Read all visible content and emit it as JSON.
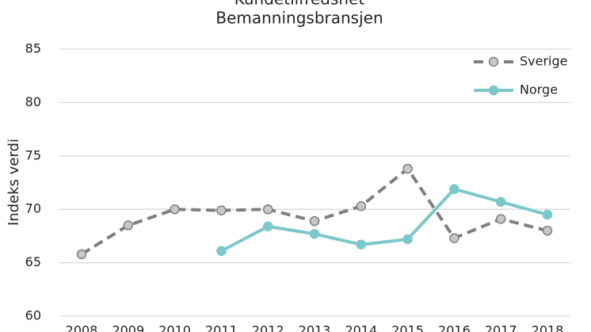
{
  "chart_data": {
    "type": "line",
    "title": [
      "Kundetilfredshet",
      "Bemanningsbransjen"
    ],
    "y_label": "Indeks verdi",
    "categories": [
      "2008",
      "2009",
      "2010",
      "2011",
      "2012",
      "2013",
      "2014",
      "2015",
      "2016",
      "2017",
      "2018"
    ],
    "series": [
      {
        "name": "Sverige",
        "color": "#7f7f7f",
        "dashed": true,
        "values": [
          65.8,
          68.5,
          70.0,
          69.9,
          70.0,
          68.9,
          70.3,
          73.8,
          67.3,
          69.1,
          68.0
        ]
      },
      {
        "name": "Norge",
        "color": "#7cc7c9",
        "dashed": false,
        "values": [
          null,
          null,
          null,
          66.1,
          68.4,
          67.7,
          66.7,
          67.2,
          71.9,
          70.7,
          69.5
        ]
      }
    ],
    "ylim": [
      60,
      85
    ],
    "yticks": [
      60,
      65,
      70,
      75,
      80,
      85
    ],
    "grid": true,
    "legend": "upper right"
  }
}
